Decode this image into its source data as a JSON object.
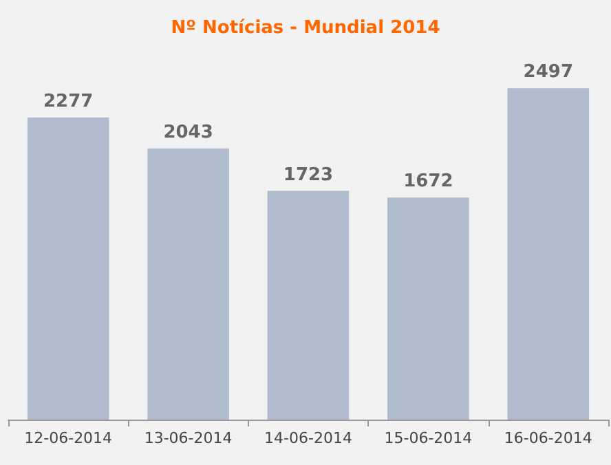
{
  "chart_data": {
    "type": "bar",
    "title": "Nº Notícias - Mundial 2014",
    "categories": [
      "12-06-2014",
      "13-06-2014",
      "14-06-2014",
      "15-06-2014",
      "16-06-2014"
    ],
    "values": [
      2277,
      2043,
      1723,
      1672,
      2497
    ],
    "color": "#b0bccd",
    "data_labels": true
  }
}
